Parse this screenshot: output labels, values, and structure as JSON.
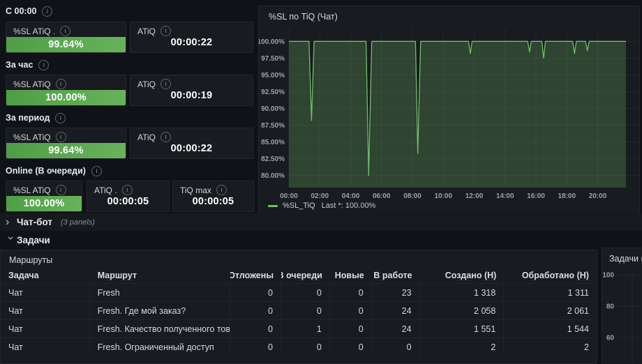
{
  "colors": {
    "accent_green": "#73bf69",
    "stat_green_bg": "#56a64b",
    "page_bg": "#111217",
    "panel_bg": "#181b1f"
  },
  "left": {
    "sections": [
      {
        "label": "С 00:00",
        "panels": [
          {
            "title": "%SL ATiQ .",
            "value": "99.64%"
          },
          {
            "title": "ATiQ",
            "value": "00:00:22"
          }
        ]
      },
      {
        "label": "За час",
        "panels": [
          {
            "title": "%SL ATiQ",
            "value": "100.00%"
          },
          {
            "title": "ATiQ",
            "value": "00:00:19"
          }
        ]
      },
      {
        "label": "За период",
        "panels": [
          {
            "title": "%SL ATiQ",
            "value": "99.64%"
          },
          {
            "title": "ATiQ",
            "value": "00:00:22"
          }
        ]
      },
      {
        "label": "Online (В очереди)",
        "panels": [
          {
            "title": "%SL ATiQ",
            "value": "100.00%"
          },
          {
            "title": "ATiQ .",
            "value": "00:00:05"
          },
          {
            "title": "TiQ max",
            "value": "00:00:05"
          }
        ]
      }
    ]
  },
  "rows": {
    "chatbot": {
      "label": "Чат-бот",
      "note": "(3 panels)"
    },
    "tasks": {
      "label": "Задачи"
    }
  },
  "chart_data": [
    {
      "type": "area",
      "title": "%SL по TiQ (Чат)",
      "xlabel": "",
      "ylabel": "",
      "ylim": [
        78.2,
        101.9
      ],
      "xlim_minutes": [
        0,
        1356
      ],
      "grid": true,
      "legend_position": "bottom-left",
      "y_ticks": [
        {
          "value": 100,
          "label": "100.00%"
        },
        {
          "value": 97.5,
          "label": "97.50%"
        },
        {
          "value": 95,
          "label": "95.00%"
        },
        {
          "value": 92.5,
          "label": "92.50%"
        },
        {
          "value": 90,
          "label": "90.00%"
        },
        {
          "value": 87.5,
          "label": "87.50%"
        },
        {
          "value": 85,
          "label": "85.00%"
        },
        {
          "value": 82.5,
          "label": "82.50%"
        },
        {
          "value": 80,
          "label": "80.00%"
        }
      ],
      "x_ticks": [
        {
          "minutes": 0,
          "label": "00:00"
        },
        {
          "minutes": 120,
          "label": "02:00"
        },
        {
          "minutes": 240,
          "label": "04:00"
        },
        {
          "minutes": 360,
          "label": "06:00"
        },
        {
          "minutes": 480,
          "label": "08:00"
        },
        {
          "minutes": 600,
          "label": "10:00"
        },
        {
          "minutes": 720,
          "label": "12:00"
        },
        {
          "minutes": 840,
          "label": "14:00"
        },
        {
          "minutes": 960,
          "label": "16:00"
        },
        {
          "minutes": 1080,
          "label": "18:00"
        },
        {
          "minutes": 1200,
          "label": "20:00"
        }
      ],
      "series": [
        {
          "name": "%SL_TiQ",
          "color": "#73bf69",
          "fill_opacity": 0.25,
          "points_minutes_percent": [
            [
              0,
              100
            ],
            [
              78,
              100
            ],
            [
              88,
              88.2
            ],
            [
              98,
              100
            ],
            [
              300,
              100
            ],
            [
              310,
              80.0
            ],
            [
              322,
              100
            ],
            [
              492,
              100
            ],
            [
              501,
              83.3
            ],
            [
              512,
              100
            ],
            [
              698,
              100
            ],
            [
              705,
              98.2
            ],
            [
              712,
              100
            ],
            [
              928,
              100
            ],
            [
              935,
              98.4
            ],
            [
              942,
              100
            ],
            [
              983,
              100
            ],
            [
              990,
              97.5
            ],
            [
              997,
              100
            ],
            [
              1103,
              100
            ],
            [
              1110,
              98.2
            ],
            [
              1117,
              100
            ],
            [
              1153,
              100
            ],
            [
              1160,
              98.6
            ],
            [
              1167,
              100
            ],
            [
              1310,
              100
            ]
          ]
        }
      ],
      "legend": {
        "label": "%SL_TiQ",
        "last": "Last *: 100.00%"
      }
    },
    {
      "type": "area",
      "title": "Задачи (Чат",
      "grid": true,
      "y_ticks": [
        {
          "value": 100,
          "label": "100"
        },
        {
          "value": 80,
          "label": "80"
        },
        {
          "value": 60,
          "label": "60"
        }
      ],
      "series": []
    }
  ],
  "routes_table": {
    "title": "Маршруты",
    "columns": [
      "Задача",
      "Маршрут",
      "Отложены",
      "В очереди",
      "Новые",
      "В работе",
      "Создано (Н)",
      "Обработано (Н)"
    ],
    "rows": [
      [
        "Чат",
        "Fresh",
        "0",
        "0",
        "0",
        "23",
        "1 318",
        "1 311"
      ],
      [
        "Чат",
        "Fresh. Где мой заказ?",
        "0",
        "0",
        "0",
        "24",
        "2 058",
        "2 061"
      ],
      [
        "Чат",
        "Fresh. Качество полученного товара",
        "0",
        "1",
        "0",
        "24",
        "1 551",
        "1 544"
      ],
      [
        "Чат",
        "Fresh. Ограниченный доступ",
        "0",
        "0",
        "0",
        "0",
        "2",
        "2"
      ]
    ]
  }
}
